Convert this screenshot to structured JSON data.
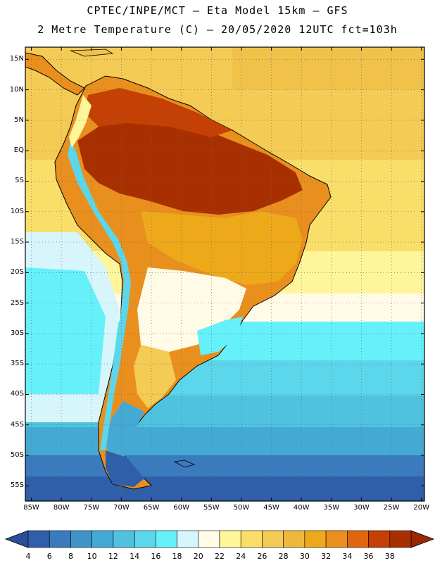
{
  "header": {
    "line1": "CPTEC/INPE/MCT –  Eta Model 15km – GFS",
    "line2": "2 Metre Temperature (C) – 20/05/2020 12UTC fct=103h"
  },
  "map": {
    "lat_labels": [
      "15N",
      "10N",
      "5N",
      "EQ",
      "5S",
      "10S",
      "15S",
      "20S",
      "25S",
      "30S",
      "35S",
      "40S",
      "45S",
      "50S",
      "55S"
    ],
    "lat_values": [
      15,
      10,
      5,
      0,
      -5,
      -10,
      -15,
      -20,
      -25,
      -30,
      -35,
      -40,
      -45,
      -50,
      -55
    ],
    "lon_labels": [
      "85W",
      "80W",
      "75W",
      "70W",
      "65W",
      "60W",
      "55W",
      "50W",
      "45W",
      "40W",
      "35W",
      "30W",
      "25W",
      "20W"
    ],
    "lon_values": [
      -85,
      -80,
      -75,
      -70,
      -65,
      -60,
      -55,
      -50,
      -45,
      -40,
      -35,
      -30,
      -25,
      -20
    ],
    "lon_range": [
      -86,
      -19.5
    ],
    "lat_range": [
      -57.5,
      17
    ]
  },
  "colorbar": {
    "labels": [
      "4",
      "6",
      "8",
      "10",
      "12",
      "14",
      "16",
      "18",
      "20",
      "22",
      "24",
      "26",
      "28",
      "30",
      "32",
      "34",
      "36",
      "38"
    ],
    "colors": [
      "#2f5fa8",
      "#3a7abd",
      "#3f93c6",
      "#44aad4",
      "#4fc2e0",
      "#5cd6ea",
      "#66f0fa",
      "#d6f6fb",
      "#fffbe6",
      "#fff59a",
      "#f9df6a",
      "#f3cb55",
      "#eeb83c",
      "#eea91a",
      "#e98f1e",
      "#df6511",
      "#c44004",
      "#a83000"
    ],
    "low_arrow": "#2a4f98",
    "high_arrow": "#9a2800"
  }
}
